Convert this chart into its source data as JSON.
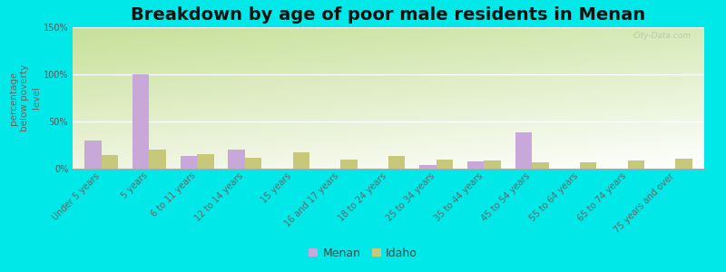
{
  "title": "Breakdown by age of poor male residents in Menan",
  "ylabel": "percentage\nbelow poverty\nlevel",
  "categories": [
    "Under 5 years",
    "5 years",
    "6 to 11 years",
    "12 to 14 years",
    "15 years",
    "16 and 17 years",
    "18 to 24 years",
    "25 to 34 years",
    "35 to 44 years",
    "45 to 54 years",
    "55 to 64 years",
    "65 to 74 years",
    "75 years and over"
  ],
  "menan_values": [
    30,
    100,
    13,
    20,
    0,
    0,
    0,
    4,
    8,
    38,
    0,
    0,
    0
  ],
  "idaho_values": [
    14,
    20,
    15,
    12,
    17,
    10,
    13,
    10,
    9,
    7,
    7,
    9,
    11
  ],
  "menan_color": "#c8a8d8",
  "idaho_color": "#c8c87a",
  "bg_outer": "#00e8e8",
  "ylim": [
    0,
    150
  ],
  "yticks": [
    0,
    50,
    100,
    150
  ],
  "ytick_labels": [
    "0%",
    "50%",
    "100%",
    "150%"
  ],
  "title_fontsize": 14,
  "axis_label_fontsize": 7.5,
  "tick_fontsize": 7,
  "legend_labels": [
    "Menan",
    "Idaho"
  ],
  "watermark": "City-Data.com"
}
